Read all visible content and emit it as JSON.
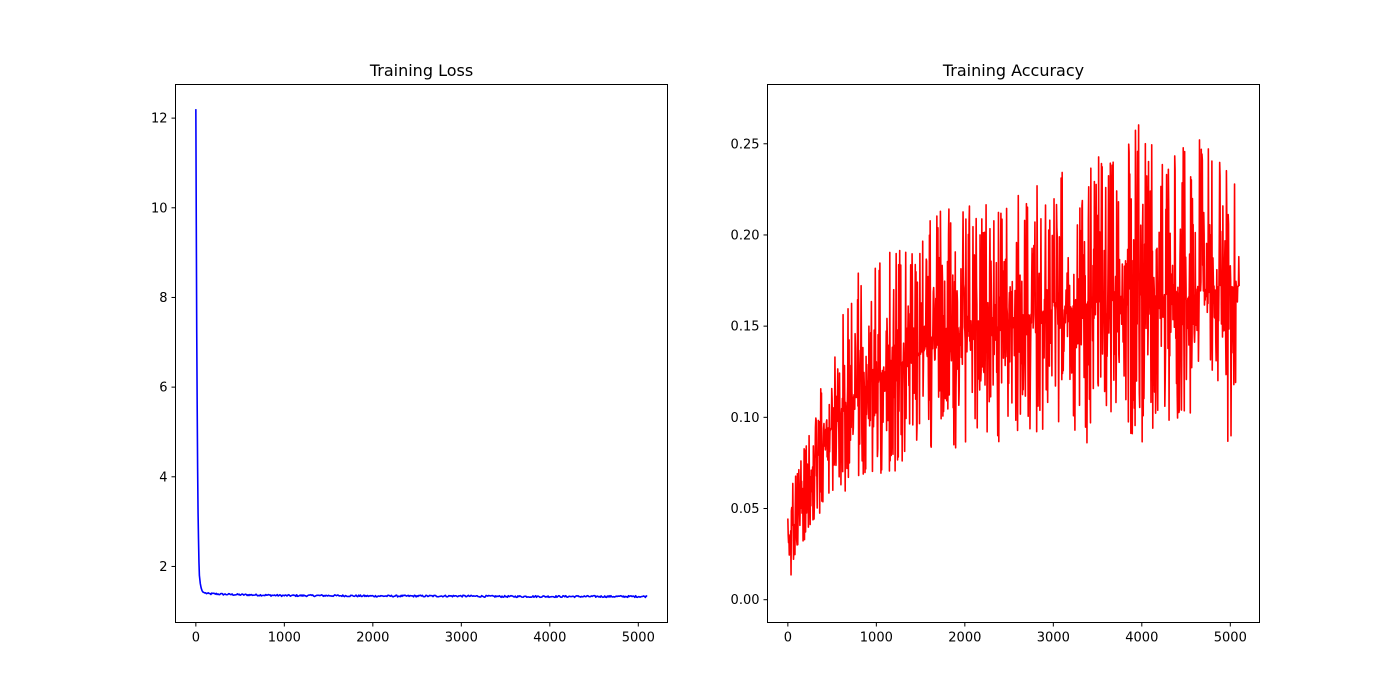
{
  "chart_data": [
    {
      "type": "line",
      "title": "Training Loss",
      "xlabel": "",
      "ylabel": "",
      "xlim": [
        -230,
        5330
      ],
      "ylim": [
        0.75,
        12.75
      ],
      "xticks": [
        0,
        1000,
        2000,
        3000,
        4000,
        5000
      ],
      "yticks": [
        2,
        4,
        6,
        8,
        10,
        12
      ],
      "xtick_labels": [
        "0",
        "1000",
        "2000",
        "3000",
        "4000",
        "5000"
      ],
      "ytick_labels": [
        "2",
        "4",
        "6",
        "8",
        "10",
        "12"
      ],
      "grid": false,
      "series": [
        {
          "color": "#0000ff",
          "x": [
            0,
            5,
            10,
            15,
            20,
            25,
            30,
            35,
            40,
            50,
            60,
            70,
            80,
            100,
            120,
            150,
            200,
            300,
            500,
            800,
            1000,
            1500,
            2000,
            2500,
            3000,
            3500,
            4000,
            4500,
            5000,
            5100
          ],
          "y": [
            12.2,
            9.6,
            7.2,
            5.6,
            4.2,
            3.2,
            2.6,
            2.1,
            1.8,
            1.62,
            1.52,
            1.46,
            1.43,
            1.41,
            1.4,
            1.39,
            1.39,
            1.38,
            1.37,
            1.36,
            1.35,
            1.35,
            1.34,
            1.34,
            1.34,
            1.33,
            1.33,
            1.33,
            1.33,
            1.33
          ]
        }
      ]
    },
    {
      "type": "line",
      "title": "Training Accuracy",
      "xlabel": "",
      "ylabel": "",
      "xlim": [
        -230,
        5330
      ],
      "ylim": [
        -0.0125,
        0.2825
      ],
      "xticks": [
        0,
        1000,
        2000,
        3000,
        4000,
        5000
      ],
      "yticks": [
        0.0,
        0.05,
        0.1,
        0.15,
        0.2,
        0.25
      ],
      "xtick_labels": [
        "0",
        "1000",
        "2000",
        "3000",
        "4000",
        "5000"
      ],
      "ytick_labels": [
        "0.00",
        "0.05",
        "0.10",
        "0.15",
        "0.20",
        "0.25"
      ],
      "grid": false,
      "series": [
        {
          "color": "#ff0000",
          "x": [
            0,
            100,
            200,
            300,
            400,
            500,
            600,
            700,
            800,
            900,
            1000,
            1200,
            1400,
            1600,
            1800,
            2000,
            2200,
            2400,
            2600,
            2800,
            3000,
            3200,
            3400,
            3600,
            3800,
            4000,
            4200,
            4400,
            4600,
            4800,
            5000,
            5100
          ],
          "y_mean": [
            0.03,
            0.045,
            0.06,
            0.075,
            0.085,
            0.095,
            0.1,
            0.108,
            0.114,
            0.118,
            0.122,
            0.128,
            0.133,
            0.138,
            0.142,
            0.146,
            0.149,
            0.152,
            0.155,
            0.157,
            0.159,
            0.161,
            0.163,
            0.164,
            0.165,
            0.166,
            0.167,
            0.168,
            0.169,
            0.17,
            0.171,
            0.172
          ],
          "y_min": [
            0.005,
            0.015,
            0.03,
            0.04,
            0.045,
            0.05,
            0.055,
            0.06,
            0.065,
            0.065,
            0.055,
            0.065,
            0.075,
            0.08,
            0.085,
            0.08,
            0.09,
            0.08,
            0.09,
            0.09,
            0.095,
            0.095,
            0.075,
            0.1,
            0.1,
            0.075,
            0.1,
            0.095,
            0.105,
            0.11,
            0.07,
            0.135
          ],
          "y_max": [
            0.075,
            0.075,
            0.085,
            0.1,
            0.125,
            0.145,
            0.16,
            0.17,
            0.18,
            0.18,
            0.195,
            0.195,
            0.2,
            0.21,
            0.215,
            0.215,
            0.23,
            0.215,
            0.235,
            0.23,
            0.235,
            0.242,
            0.245,
            0.245,
            0.247,
            0.271,
            0.245,
            0.25,
            0.258,
            0.25,
            0.235,
            0.235
          ]
        }
      ]
    }
  ]
}
